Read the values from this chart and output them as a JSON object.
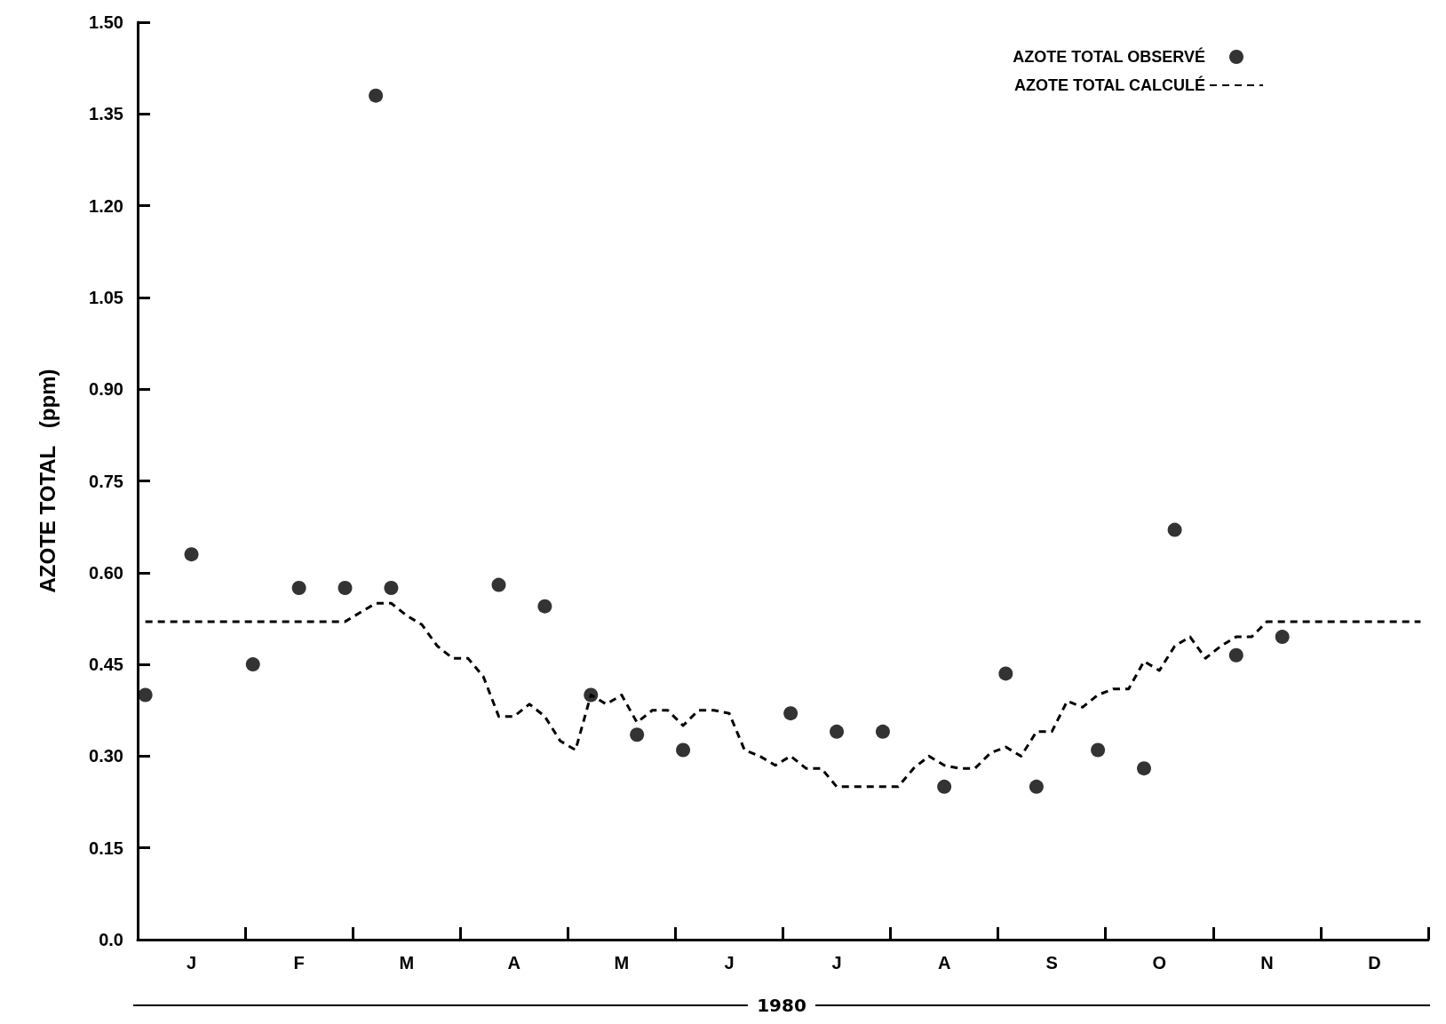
{
  "chart_data": {
    "type": "scatter",
    "ylabel": "AZOTE TOTAL   (ppm)",
    "xlabel": "1980",
    "categories": [
      null,
      null,
      null,
      "J",
      null,
      null,
      null,
      null,
      null,
      null,
      "F",
      null,
      null,
      null,
      null,
      null,
      null,
      "M",
      null,
      null,
      null,
      null,
      null,
      null,
      "A",
      null,
      null,
      null,
      null,
      null,
      null,
      "M",
      null,
      null,
      null,
      null,
      null,
      null,
      "J",
      null,
      null,
      null,
      null,
      null,
      null,
      "J",
      null,
      null,
      null,
      null,
      null,
      null,
      "A",
      null,
      null,
      null,
      null,
      null,
      null,
      "S",
      null,
      null,
      null,
      null,
      null,
      null,
      "O",
      null,
      null,
      null,
      null,
      null,
      null,
      "N",
      null,
      null,
      null,
      null,
      null,
      null,
      "D",
      null,
      null,
      null
    ],
    "ylim": [
      0,
      1.5
    ],
    "yticks": [
      {
        "value": 0,
        "label": "0.0"
      },
      0.15,
      {
        "value": 0.3,
        "label": "0.30"
      },
      0.45,
      {
        "value": 0.6,
        "label": "0.60"
      },
      0.75,
      {
        "value": 0.9,
        "label": "0.90"
      },
      1.05,
      {
        "value": 1.2,
        "label": "1.20"
      },
      1.35,
      {
        "value": 1.5,
        "label": "1.50"
      }
    ],
    "grid": false,
    "legend": "top right",
    "series": [
      {
        "name": "AZOTE TOTAL OBSERVÉ",
        "marker": "circle",
        "color": "#000000",
        "values": [
          0.4,
          null,
          null,
          0.63,
          null,
          null,
          null,
          0.45,
          null,
          null,
          0.575,
          null,
          null,
          0.575,
          null,
          1.38,
          0.575,
          null,
          null,
          null,
          null,
          null,
          null,
          0.58,
          null,
          null,
          0.545,
          null,
          null,
          0.4,
          null,
          null,
          0.335,
          null,
          null,
          0.31,
          null,
          null,
          null,
          null,
          null,
          null,
          0.37,
          null,
          null,
          0.34,
          null,
          null,
          0.34,
          null,
          null,
          null,
          0.25,
          null,
          null,
          null,
          0.435,
          null,
          0.25,
          null,
          null,
          null,
          0.31,
          null,
          null,
          0.28,
          null,
          0.67,
          null,
          null,
          null,
          0.465,
          null,
          null,
          0.495,
          null,
          null,
          null,
          null,
          null,
          null,
          null,
          null,
          null
        ]
      },
      {
        "name": "AZOTE TOTAL CALCULÉ",
        "type": "line",
        "marker": "none",
        "line_style": "dashed",
        "color": "#000000",
        "values": [
          0.52,
          0.52,
          0.52,
          0.52,
          0.52,
          0.52,
          0.52,
          0.52,
          0.52,
          0.52,
          0.52,
          0.52,
          0.52,
          0.52,
          0.535,
          0.55,
          0.55,
          0.53,
          0.515,
          0.48,
          0.46,
          0.46,
          0.43,
          0.365,
          0.365,
          0.385,
          0.365,
          0.325,
          0.31,
          0.4,
          0.385,
          0.4,
          0.355,
          0.375,
          0.375,
          0.35,
          0.375,
          0.375,
          0.37,
          0.31,
          0.3,
          0.285,
          0.3,
          0.28,
          0.28,
          0.25,
          0.25,
          0.25,
          0.25,
          0.25,
          0.28,
          0.3,
          0.285,
          0.28,
          0.28,
          0.305,
          0.315,
          0.3,
          0.34,
          0.34,
          0.39,
          0.38,
          0.4,
          0.41,
          0.41,
          0.455,
          0.44,
          0.48,
          0.495,
          0.46,
          0.48,
          0.495,
          0.495,
          0.52,
          0.52,
          0.52,
          0.52,
          0.52,
          0.52,
          0.52,
          0.52,
          0.52,
          0.52,
          0.52
        ]
      }
    ]
  }
}
